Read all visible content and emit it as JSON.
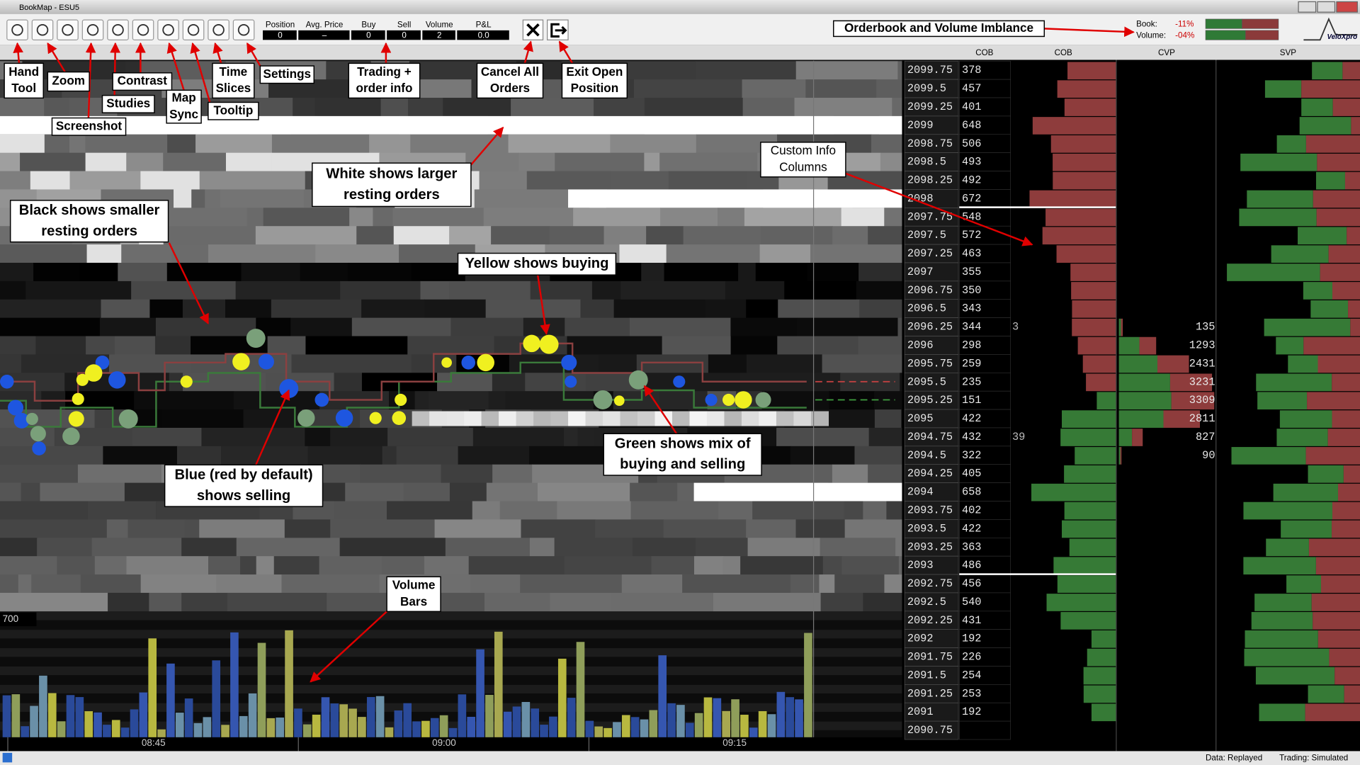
{
  "window": {
    "title": "BookMap - ESU5"
  },
  "toolbar": {
    "fields": [
      {
        "label": "Position",
        "value": "0"
      },
      {
        "label": "Avg. Price",
        "value": "–"
      },
      {
        "label": "Buy",
        "value": "0"
      },
      {
        "label": "Sell",
        "value": "0"
      },
      {
        "label": "Volume",
        "value": "2"
      },
      {
        "label": "P&L",
        "value": "0.0"
      }
    ],
    "imbalance": {
      "book_label": "Book:",
      "book_value": "-11%",
      "volume_label": "Volume:",
      "volume_value": "-04%"
    },
    "logo": "VeloXpro"
  },
  "columns": [
    "COB",
    "COB",
    "CVP",
    "SVP"
  ],
  "ladder": [
    {
      "price": "2099.75",
      "cob": 378
    },
    {
      "price": "2099.5",
      "cob": 457
    },
    {
      "price": "2099.25",
      "cob": 401
    },
    {
      "price": "2099",
      "cob": 648
    },
    {
      "price": "2098.75",
      "cob": 506
    },
    {
      "price": "2098.5",
      "cob": 493
    },
    {
      "price": "2098.25",
      "cob": 492
    },
    {
      "price": "2098",
      "cob": 672
    },
    {
      "price": "2097.75",
      "cob": 548
    },
    {
      "price": "2097.5",
      "cob": 572
    },
    {
      "price": "2097.25",
      "cob": 463
    },
    {
      "price": "2097",
      "cob": 355
    },
    {
      "price": "2096.75",
      "cob": 350
    },
    {
      "price": "2096.5",
      "cob": 343
    },
    {
      "price": "2096.25",
      "cob": 344,
      "cob2": "3",
      "cvp": 135
    },
    {
      "price": "2096",
      "cob": 298,
      "cvp": 1293
    },
    {
      "price": "2095.75",
      "cob": 259,
      "cvp": 2431
    },
    {
      "price": "2095.5",
      "cob": 235,
      "cvp": 3231
    },
    {
      "price": "2095.25",
      "cob": 151,
      "cvp": 3309
    },
    {
      "price": "2095",
      "cob": 422,
      "cvp": 2811
    },
    {
      "price": "2094.75",
      "cob": 432,
      "cob2": "39",
      "cvp": 827
    },
    {
      "price": "2094.5",
      "cob": 322,
      "cvp": 90
    },
    {
      "price": "2094.25",
      "cob": 405
    },
    {
      "price": "2094",
      "cob": 658
    },
    {
      "price": "2093.75",
      "cob": 402
    },
    {
      "price": "2093.5",
      "cob": 422
    },
    {
      "price": "2093.25",
      "cob": 363
    },
    {
      "price": "2093",
      "cob": 486
    },
    {
      "price": "2092.75",
      "cob": 456
    },
    {
      "price": "2092.5",
      "cob": 540
    },
    {
      "price": "2092.25",
      "cob": 431
    },
    {
      "price": "2092",
      "cob": 192
    },
    {
      "price": "2091.75",
      "cob": 226
    },
    {
      "price": "2091.5",
      "cob": 254
    },
    {
      "price": "2091.25",
      "cob": 253
    },
    {
      "price": "2091",
      "cob": 192
    },
    {
      "price": "2090.75"
    }
  ],
  "volume_scale": "700",
  "time_labels": [
    "08:45",
    "09:00",
    "09:15"
  ],
  "annotations": [
    {
      "lines": [
        "Hand",
        "Tool"
      ]
    },
    {
      "lines": [
        "Zoom"
      ]
    },
    {
      "lines": [
        "Screenshot"
      ]
    },
    {
      "lines": [
        "Studies"
      ]
    },
    {
      "lines": [
        "Contrast"
      ]
    },
    {
      "lines": [
        "Map",
        "Sync"
      ]
    },
    {
      "lines": [
        "Time",
        "Slices"
      ]
    },
    {
      "lines": [
        "Tooltip"
      ]
    },
    {
      "lines": [
        "Settings"
      ]
    },
    {
      "lines": [
        "Trading +",
        "order info"
      ]
    },
    {
      "lines": [
        "Cancel All",
        "Orders"
      ]
    },
    {
      "lines": [
        "Exit Open",
        "Position"
      ]
    },
    {
      "lines": [
        "White shows larger",
        "resting orders"
      ]
    },
    {
      "lines": [
        "Black shows smaller",
        "resting orders"
      ]
    },
    {
      "lines": [
        "Custom Info",
        "Columns"
      ]
    },
    {
      "lines": [
        "Yellow shows buying"
      ]
    },
    {
      "lines": [
        "Blue (red by default)",
        "shows selling"
      ]
    },
    {
      "lines": [
        "Green shows mix of",
        "buying and selling"
      ]
    },
    {
      "lines": [
        "Volume",
        "Bars"
      ]
    },
    {
      "lines": [
        "Orderbook and Volume Imblance"
      ]
    }
  ],
  "status": {
    "data": "Data: Replayed",
    "trading": "Trading: Simulated"
  }
}
